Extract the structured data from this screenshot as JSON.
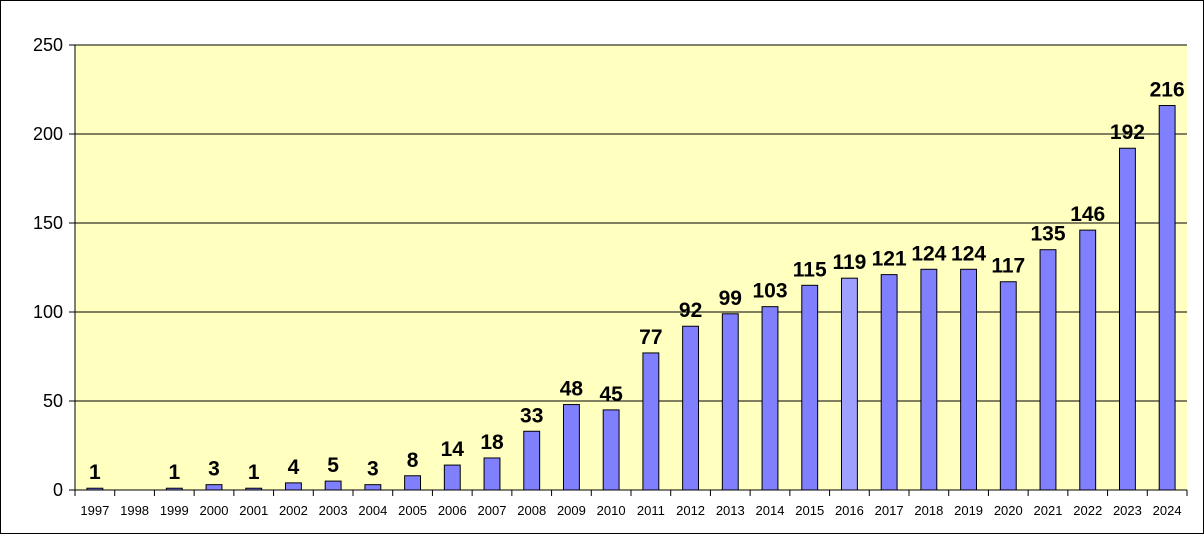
{
  "chart_data": {
    "type": "bar",
    "categories": [
      "1997",
      "1998",
      "1999",
      "2000",
      "2001",
      "2002",
      "2003",
      "2004",
      "2005",
      "2006",
      "2007",
      "2008",
      "2009",
      "2010",
      "2011",
      "2012",
      "2013",
      "2014",
      "2015",
      "2016",
      "2017",
      "2018",
      "2019",
      "2020",
      "2021",
      "2022",
      "2023",
      "2024"
    ],
    "values": [
      1,
      0,
      1,
      3,
      1,
      4,
      5,
      3,
      8,
      14,
      18,
      33,
      48,
      45,
      77,
      92,
      99,
      103,
      115,
      119,
      121,
      124,
      124,
      117,
      135,
      146,
      192,
      216
    ],
    "data_labels": [
      "1",
      "",
      "1",
      "3",
      "1",
      "4",
      "5",
      "3",
      "8",
      "14",
      "18",
      "33",
      "48",
      "45",
      "77",
      "92",
      "99",
      "103",
      "115",
      "119",
      "121",
      "124",
      "124",
      "117",
      "135",
      "146",
      "192",
      "216"
    ],
    "y_ticks": [
      0,
      50,
      100,
      150,
      200,
      250
    ],
    "ylim": [
      0,
      250
    ],
    "title": "",
    "xlabel": "",
    "ylabel": "",
    "grid": true,
    "legend": "none",
    "colors": {
      "plot_background": "#FFFFC0",
      "bar_fill": "#8080FF",
      "bar_fill_highlight": "#A0A0FF",
      "bar_stroke": "#000000",
      "gridline": "#000000"
    },
    "highlight_index": 19
  }
}
